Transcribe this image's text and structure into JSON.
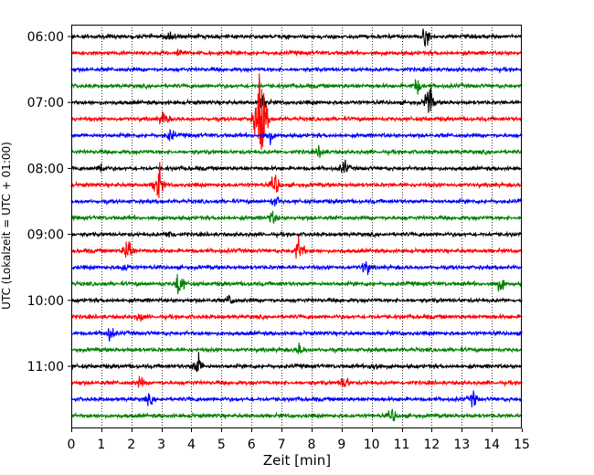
{
  "chart_data": {
    "type": "line",
    "title": "",
    "xlabel": "Zeit  [min]",
    "ylabel": "UTC (Lokalzeit = UTC + 01:00)",
    "xlim": [
      0,
      15
    ],
    "x_ticks": [
      0,
      1,
      2,
      3,
      4,
      5,
      6,
      7,
      8,
      9,
      10,
      11,
      12,
      13,
      14,
      15
    ],
    "y_ticks": [
      "06:00",
      "07:00",
      "08:00",
      "09:00",
      "10:00",
      "11:00"
    ],
    "grid": {
      "x": "dotted vertical lines at each minute"
    },
    "row_minutes": 15,
    "color_cycle": [
      "#000000",
      "#ff0000",
      "#0000ff",
      "#008000"
    ],
    "rows": [
      {
        "start": "06:00",
        "events": [
          {
            "t": 3.3,
            "a": 0.5
          },
          {
            "t": 11.8,
            "a": 0.6
          }
        ]
      },
      {
        "start": "06:15",
        "events": [
          {
            "t": 3.6,
            "a": 0.3
          }
        ]
      },
      {
        "start": "06:30",
        "events": []
      },
      {
        "start": "06:45",
        "events": [
          {
            "t": 11.5,
            "a": 0.5
          }
        ]
      },
      {
        "start": "07:00",
        "events": [
          {
            "t": 11.9,
            "a": 1.2
          },
          {
            "t": 6.4,
            "a": 0.5
          }
        ]
      },
      {
        "start": "07:15",
        "events": [
          {
            "t": 6.3,
            "a": 3.3
          },
          {
            "t": 3.1,
            "a": 0.5
          }
        ]
      },
      {
        "start": "07:30",
        "events": [
          {
            "t": 3.3,
            "a": 0.4
          },
          {
            "t": 6.6,
            "a": 0.5
          }
        ]
      },
      {
        "start": "07:45",
        "events": [
          {
            "t": 8.3,
            "a": 0.4
          }
        ]
      },
      {
        "start": "08:00",
        "events": [
          {
            "t": 1.0,
            "a": 0.4
          },
          {
            "t": 9.1,
            "a": 0.5
          }
        ]
      },
      {
        "start": "08:15",
        "events": [
          {
            "t": 2.9,
            "a": 1.4
          },
          {
            "t": 6.8,
            "a": 0.8
          }
        ]
      },
      {
        "start": "08:30",
        "events": [
          {
            "t": 6.8,
            "a": 0.4
          }
        ]
      },
      {
        "start": "08:45",
        "events": [
          {
            "t": 6.7,
            "a": 0.4
          }
        ]
      },
      {
        "start": "09:00",
        "events": [
          {
            "t": 3.3,
            "a": 0.3
          }
        ]
      },
      {
        "start": "09:15",
        "events": [
          {
            "t": 1.9,
            "a": 1.1
          },
          {
            "t": 7.6,
            "a": 1.0
          }
        ]
      },
      {
        "start": "09:30",
        "events": [
          {
            "t": 9.8,
            "a": 0.5
          },
          {
            "t": 1.8,
            "a": 0.3
          }
        ]
      },
      {
        "start": "09:45",
        "events": [
          {
            "t": 3.6,
            "a": 1.0
          },
          {
            "t": 14.3,
            "a": 0.5
          }
        ]
      },
      {
        "start": "10:00",
        "events": [
          {
            "t": 5.3,
            "a": 0.4
          }
        ]
      },
      {
        "start": "10:15",
        "events": [
          {
            "t": 2.3,
            "a": 0.3
          }
        ]
      },
      {
        "start": "10:30",
        "events": [
          {
            "t": 1.3,
            "a": 0.5
          }
        ]
      },
      {
        "start": "10:45",
        "events": [
          {
            "t": 7.6,
            "a": 0.4
          }
        ]
      },
      {
        "start": "11:00",
        "events": [
          {
            "t": 4.2,
            "a": 0.9
          },
          {
            "t": 10.1,
            "a": 0.3
          }
        ]
      },
      {
        "start": "11:15",
        "events": [
          {
            "t": 9.1,
            "a": 0.5
          },
          {
            "t": 2.3,
            "a": 0.3
          }
        ]
      },
      {
        "start": "11:30",
        "events": [
          {
            "t": 13.4,
            "a": 0.5
          },
          {
            "t": 2.6,
            "a": 0.3
          }
        ]
      },
      {
        "start": "11:45",
        "events": [
          {
            "t": 10.7,
            "a": 0.5
          }
        ]
      }
    ]
  }
}
